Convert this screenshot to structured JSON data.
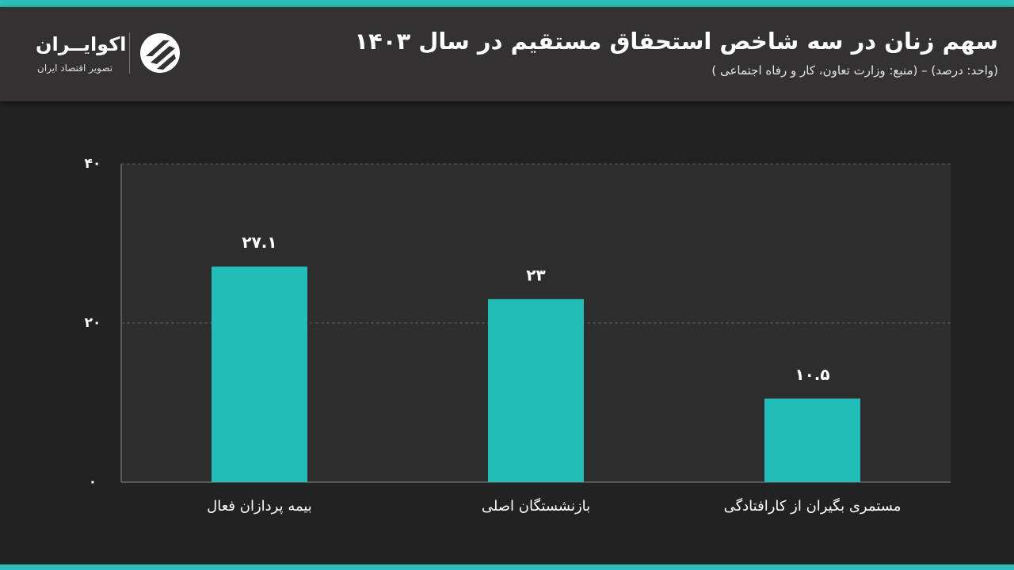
{
  "brand": {
    "name": "اکوایــران",
    "tagline": "تصویر اقتصاد ایران"
  },
  "chart_data": {
    "type": "bar",
    "title": "سهم زنان در سه شاخص استحقاق مستقیم در سال ۱۴۰۳",
    "subtitle": "(واحد: درصد) – (منبع: وزارت تعاون، کار و رفاه اجتماعی )",
    "categories": [
      "بیمه پردازان فعال",
      "بازنشستگان اصلی",
      "مستمری بگیران از کارافتادگی"
    ],
    "values": [
      27.1,
      23,
      10.5
    ],
    "value_labels": [
      "۲۷.۱",
      "۲۳",
      "۱۰.۵"
    ],
    "color": "#22bdb9",
    "ylim": [
      0,
      40
    ],
    "yticks": [
      {
        "value": 0,
        "label": "۰"
      },
      {
        "value": 20,
        "label": "۲۰"
      },
      {
        "value": 40,
        "label": "۴۰"
      }
    ],
    "grid": true
  }
}
